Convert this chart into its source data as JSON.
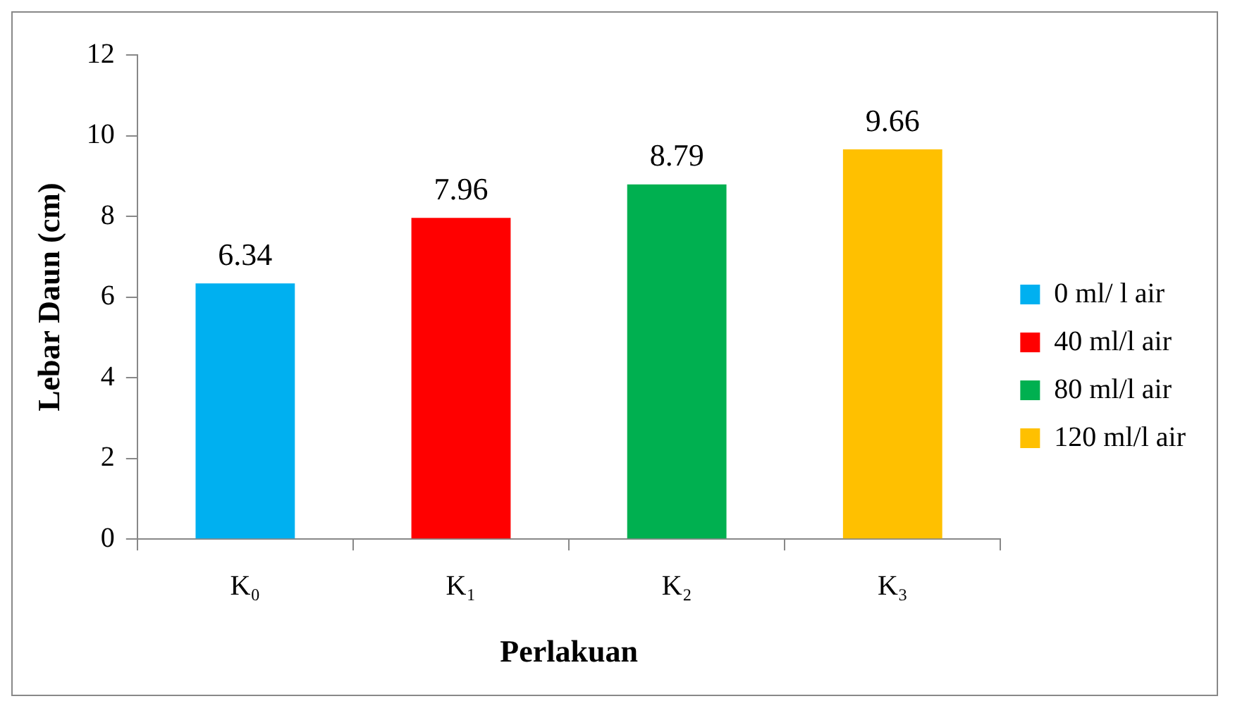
{
  "chart_data": {
    "type": "bar",
    "xlabel": "Perlakuan",
    "ylabel": "Lebar Daun (cm)",
    "categories": [
      "K₀",
      "K₁",
      "K₂",
      "K₃"
    ],
    "series": [
      {
        "name": "0 ml/ l air",
        "color": "#00b0f0",
        "values": [
          6.34,
          null,
          null,
          null
        ]
      },
      {
        "name": "40 ml/l air",
        "color": "#ff0000",
        "values": [
          null,
          7.96,
          null,
          null
        ]
      },
      {
        "name": "80 ml/l air",
        "color": "#00b050",
        "values": [
          null,
          null,
          8.79,
          null
        ]
      },
      {
        "name": "120 ml/l air",
        "color": "#ffc000",
        "values": [
          null,
          null,
          null,
          9.66
        ]
      }
    ],
    "ylim": [
      0,
      12
    ],
    "yticks": [
      0,
      2,
      4,
      6,
      8,
      10,
      12
    ],
    "grid": false,
    "legend": "right",
    "data_labels": true
  }
}
